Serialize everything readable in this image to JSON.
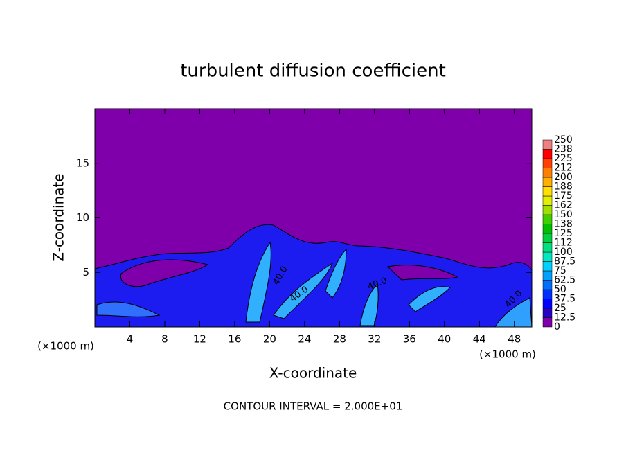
{
  "chart_data": {
    "type": "contour",
    "title": "turbulent diffusion coefficient",
    "x_label": "X-coordinate",
    "y_label": "Z-coordinate",
    "x_unit_left": "(×1000 m)",
    "x_unit_right": "(×1000 m)",
    "footer": "CONTOUR INTERVAL = 2.000E+01",
    "xlim": [
      0,
      50
    ],
    "xticks": [
      4,
      8,
      12,
      16,
      20,
      24,
      28,
      32,
      36,
      40,
      44,
      48
    ],
    "ylim": [
      0,
      20
    ],
    "yticks": [
      5,
      10,
      15
    ],
    "contour_labels": [
      "40.0",
      "40.0",
      "40.0",
      "40.0"
    ],
    "colorbar_lim": [
      0,
      250
    ],
    "colorbar_ticks": [
      0,
      12.5,
      25,
      37.5,
      50,
      62.5,
      75,
      87.5,
      100,
      {
        "value": 112.5,
        "label": "112"
      },
      125,
      {
        "value": 137.5,
        "label": "138"
      },
      150,
      {
        "value": 162.5,
        "label": "162"
      },
      175,
      {
        "value": 187.5,
        "label": "188"
      },
      200,
      {
        "value": 212.5,
        "label": "212"
      },
      225,
      {
        "value": 237.5,
        "label": "238"
      },
      250
    ],
    "colorbar_colors": [
      "#7f00aa",
      "#2a00c8",
      "#0000ff",
      "#0030ff",
      "#0070ff",
      "#00a0ff",
      "#00d0ff",
      "#00e8c0",
      "#00e080",
      "#00d040",
      "#00c000",
      "#40d000",
      "#a0e000",
      "#e0f000",
      "#ffe000",
      "#ffb000",
      "#ff8000",
      "#ff4000",
      "#ff0000",
      "#f08080"
    ]
  }
}
